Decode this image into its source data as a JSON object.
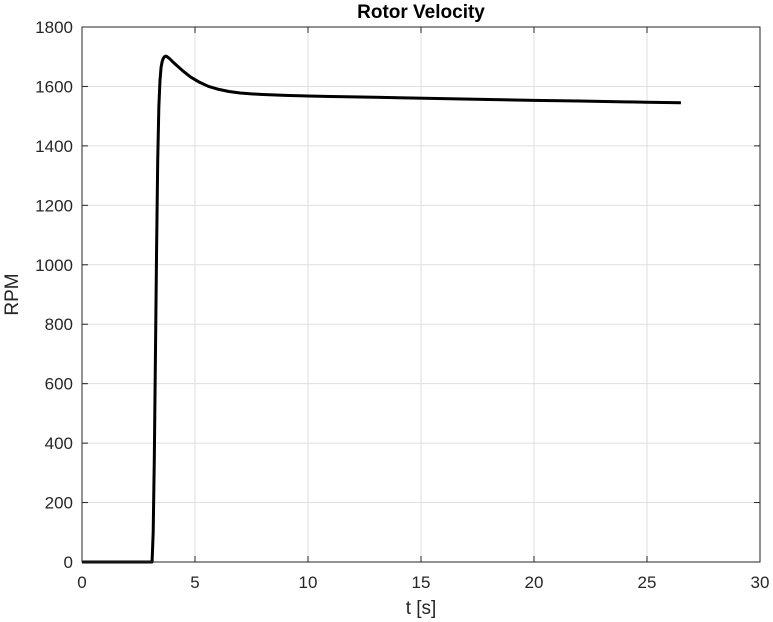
{
  "chart_data": {
    "type": "line",
    "title": "Rotor Velocity",
    "xlabel": "t [s]",
    "ylabel": "RPM",
    "xlim": [
      0,
      30
    ],
    "ylim": [
      0,
      1800
    ],
    "xticks": [
      0,
      5,
      10,
      15,
      20,
      25,
      30
    ],
    "yticks": [
      0,
      200,
      400,
      600,
      800,
      1000,
      1200,
      1400,
      1600,
      1800
    ],
    "grid": true,
    "legend": "none",
    "series": [
      {
        "color": "#000000",
        "x": [
          0,
          3.0,
          3.1,
          3.15,
          3.2,
          3.25,
          3.3,
          3.35,
          3.4,
          3.45,
          3.5,
          3.55,
          3.6,
          3.65,
          3.7,
          3.75,
          3.8,
          3.9,
          4.0,
          4.2,
          4.5,
          4.8,
          5.2,
          5.6,
          6.0,
          6.5,
          7.0,
          7.5,
          8.0,
          9.0,
          10.0,
          11.0,
          12.0,
          14.0,
          16.0,
          18.0,
          20.0,
          22.0,
          24.0,
          25.0,
          26.5
        ],
        "y": [
          0,
          0,
          0,
          100,
          350,
          700,
          1050,
          1350,
          1530,
          1620,
          1665,
          1685,
          1695,
          1700,
          1702,
          1701,
          1698,
          1692,
          1684,
          1670,
          1650,
          1632,
          1614,
          1600,
          1591,
          1583,
          1578,
          1575,
          1573,
          1570,
          1568,
          1566,
          1565,
          1562,
          1559,
          1556,
          1553,
          1551,
          1548,
          1547,
          1545
        ]
      }
    ]
  }
}
